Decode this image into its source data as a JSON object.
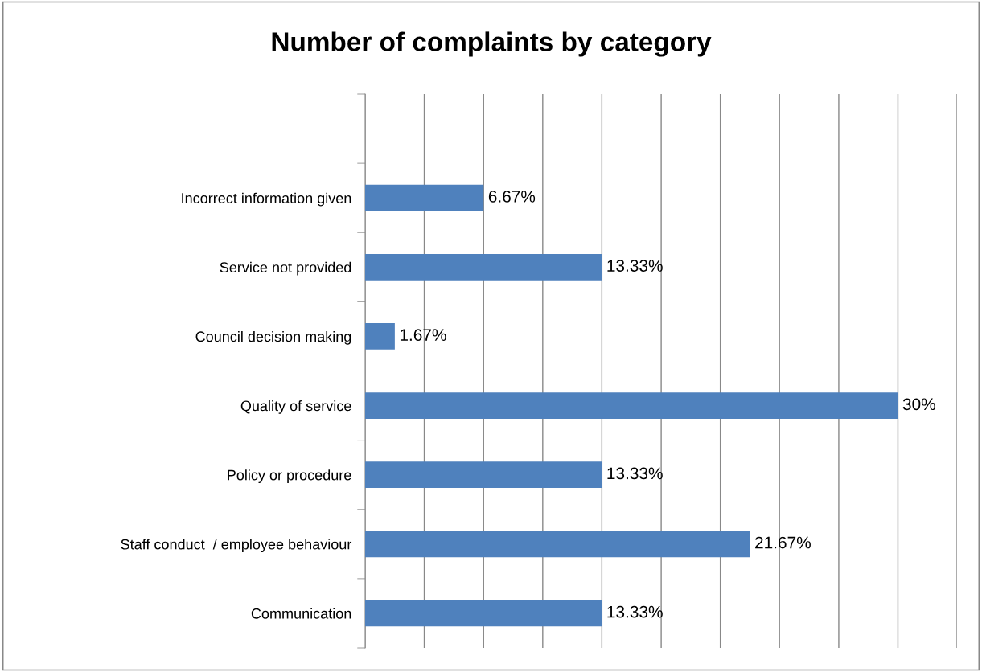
{
  "chart_data": {
    "type": "bar",
    "title": "Number of complaints by category",
    "orientation": "horizontal",
    "categories": [
      null,
      "Incorrect information given",
      "Service not provided",
      "Council decision making",
      "Quality of service",
      "Policy or procedure",
      "Staff conduct  / employee behaviour",
      "Communication"
    ],
    "values": [
      null,
      6.67,
      13.33,
      1.67,
      30,
      13.33,
      21.67,
      13.33
    ],
    "value_labels": [
      null,
      "6.67%",
      "13.33%",
      "1.67%",
      "30%",
      "13.33%",
      "21.67%",
      "13.33%"
    ],
    "color": "#4f81bd",
    "xlim": [
      0,
      33.33
    ],
    "xticks": [
      {
        "value": 0,
        "label": null
      },
      {
        "value": 3.33,
        "label": null
      },
      {
        "value": 6.67,
        "label": null
      },
      {
        "value": 10,
        "label": null
      },
      {
        "value": 13.33,
        "label": null
      },
      {
        "value": 16.67,
        "label": null
      },
      {
        "value": 20,
        "label": null
      },
      {
        "value": 23.33,
        "label": null
      },
      {
        "value": 26.67,
        "label": null
      },
      {
        "value": 30,
        "label": null
      },
      {
        "value": 33.33,
        "label": null
      }
    ],
    "grid": "x",
    "tick_labels": "y"
  }
}
